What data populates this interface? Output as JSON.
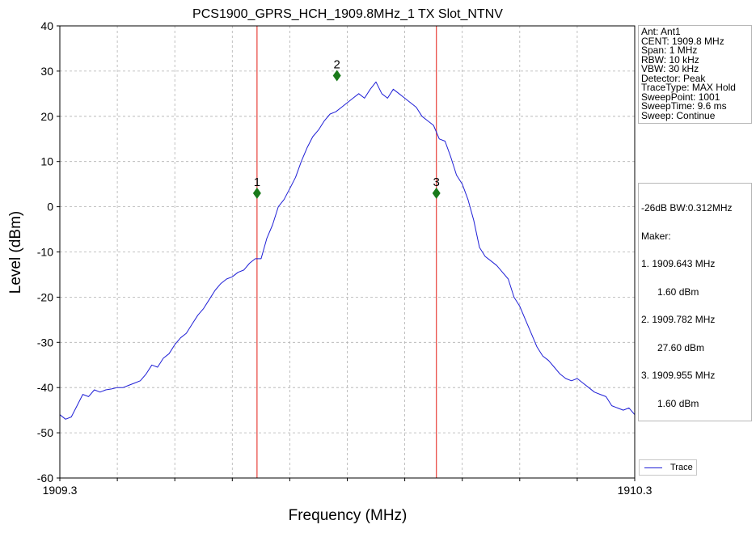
{
  "chart_data": {
    "type": "line",
    "title": "PCS1900_GPRS_HCH_1909.8MHz_1 TX Slot_NTNV",
    "xlabel": "Frequency (MHz)",
    "ylabel": "Level (dBm)",
    "xlim": [
      1909.3,
      1910.3
    ],
    "ylim": [
      -60,
      40
    ],
    "x_tick_labels": [
      {
        "value": 1909.3,
        "label": "1909.3"
      },
      {
        "value": 1910.3,
        "label": "1910.3"
      }
    ],
    "y_ticks": [
      40,
      30,
      20,
      10,
      0,
      -10,
      -20,
      -30,
      -40,
      -50,
      -60
    ],
    "grid": true,
    "legend_position": "bottom-right",
    "series": [
      {
        "name": "Trace",
        "color": "#1f1fd6",
        "x": [
          1909.3,
          1909.31,
          1909.32,
          1909.33,
          1909.34,
          1909.35,
          1909.36,
          1909.37,
          1909.38,
          1909.39,
          1909.4,
          1909.41,
          1909.42,
          1909.43,
          1909.44,
          1909.45,
          1909.46,
          1909.47,
          1909.48,
          1909.49,
          1909.5,
          1909.51,
          1909.52,
          1909.53,
          1909.54,
          1909.55,
          1909.56,
          1909.57,
          1909.58,
          1909.59,
          1909.6,
          1909.61,
          1909.62,
          1909.63,
          1909.64,
          1909.65,
          1909.66,
          1909.67,
          1909.68,
          1909.69,
          1909.7,
          1909.71,
          1909.72,
          1909.73,
          1909.74,
          1909.75,
          1909.76,
          1909.77,
          1909.78,
          1909.79,
          1909.8,
          1909.81,
          1909.82,
          1909.83,
          1909.84,
          1909.85,
          1909.86,
          1909.87,
          1909.88,
          1909.89,
          1909.9,
          1909.91,
          1909.92,
          1909.93,
          1909.94,
          1909.95,
          1909.96,
          1909.97,
          1909.98,
          1909.99,
          1910.0,
          1910.01,
          1910.02,
          1910.03,
          1910.04,
          1910.05,
          1910.06,
          1910.07,
          1910.08,
          1910.09,
          1910.1,
          1910.11,
          1910.12,
          1910.13,
          1910.14,
          1910.15,
          1910.16,
          1910.17,
          1910.18,
          1910.19,
          1910.2,
          1910.21,
          1910.22,
          1910.23,
          1910.24,
          1910.25,
          1910.26,
          1910.27,
          1910.28,
          1910.29,
          1910.3
        ],
        "y": [
          -46,
          -47,
          -46.5,
          -44,
          -41.5,
          -42,
          -40.5,
          -41,
          -40.5,
          -40.3,
          -40,
          -40,
          -39.5,
          -39,
          -38.5,
          -37,
          -35,
          -35.5,
          -33.5,
          -32.5,
          -30.5,
          -29,
          -28,
          -26,
          -24,
          -22.5,
          -20.5,
          -18.5,
          -17,
          -16,
          -15.5,
          -14.5,
          -14,
          -12.5,
          -11.5,
          -11.5,
          -7,
          -4,
          0,
          1.6,
          4,
          6.5,
          10,
          13,
          15.5,
          17,
          19,
          20.5,
          21,
          22,
          23,
          24,
          25,
          24,
          26,
          27.6,
          25,
          24,
          26,
          25,
          24,
          23,
          22,
          20,
          19,
          18,
          15,
          14.5,
          11,
          7,
          5,
          1.6,
          -3,
          -9,
          -11,
          -12,
          -13,
          -14.5,
          -16,
          -20,
          -22,
          -25,
          -28,
          -31,
          -33,
          -34,
          -35.5,
          -37,
          -38,
          -38.5,
          -38,
          -39,
          -40,
          -41,
          -41.5,
          -42,
          -44,
          -44.5,
          -45,
          -44.5,
          -46
        ]
      }
    ],
    "vertical_lines": [
      {
        "x": 1909.643,
        "color": "#e8413a"
      },
      {
        "x": 1909.955,
        "color": "#e8413a"
      }
    ],
    "markers": [
      {
        "label": "1",
        "x": 1909.643,
        "y": 3,
        "color": "#1a7a1a"
      },
      {
        "label": "2",
        "x": 1909.782,
        "y": 29,
        "color": "#1a7a1a"
      },
      {
        "label": "3",
        "x": 1909.955,
        "y": 3,
        "color": "#1a7a1a"
      }
    ]
  },
  "info": {
    "lines": [
      "Ant: Ant1",
      "CENT: 1909.8 MHz",
      "Span: 1 MHz",
      "RBW: 10 kHz",
      "VBW: 30 kHz",
      "Detector: Peak",
      "TraceType: MAX Hold",
      "SweepPoint: 1001",
      "SweepTime: 9.6 ms",
      "Sweep: Continue"
    ]
  },
  "marker_info": {
    "bw": "-26dB BW:0.312MHz",
    "heading": "Maker:",
    "entries": [
      {
        "freq": "1. 1909.643 MHz",
        "level": "1.60 dBm"
      },
      {
        "freq": "2. 1909.782 MHz",
        "level": "27.60 dBm"
      },
      {
        "freq": "3. 1909.955 MHz",
        "level": "1.60 dBm"
      }
    ]
  },
  "legend": {
    "label": "Trace"
  }
}
